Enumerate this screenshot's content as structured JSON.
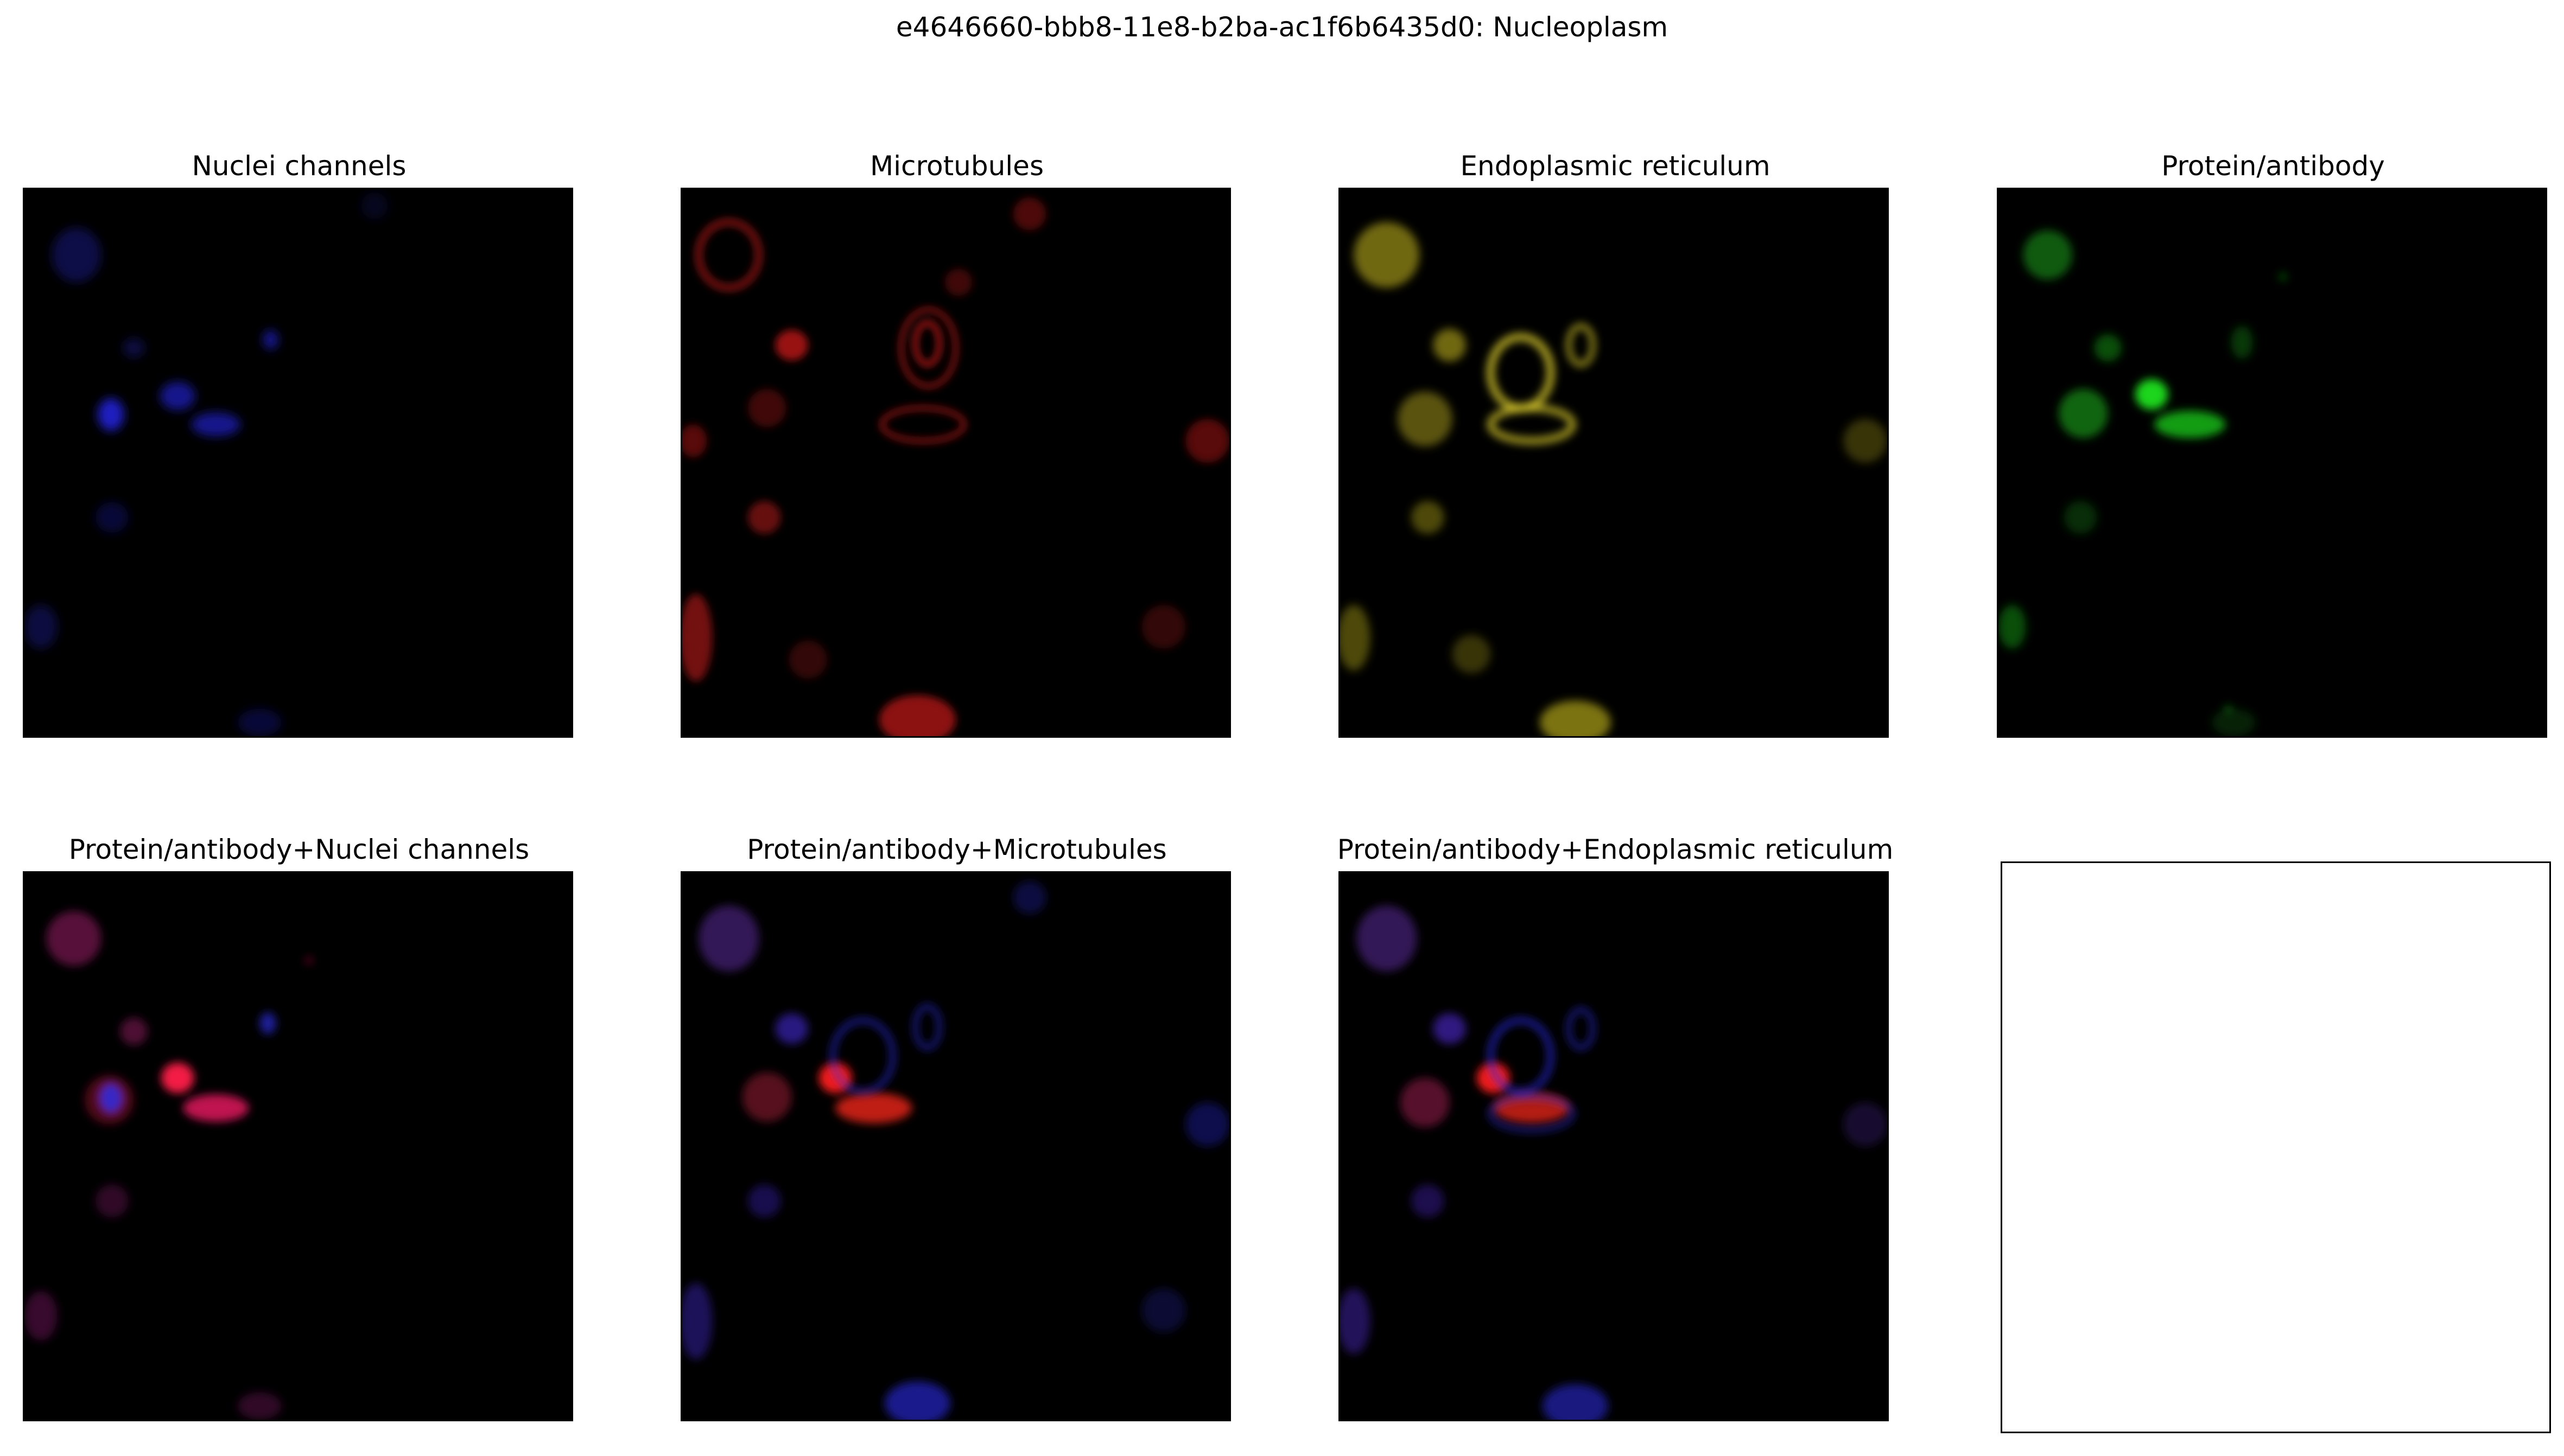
{
  "figure": {
    "title": "e4646660-bbb8-11e8-b2ba-ac1f6b6435d0: Nucleoplasm"
  },
  "panels": [
    {
      "title": "Nuclei channels",
      "channel_colors": [
        "#2a2aff"
      ]
    },
    {
      "title": "Microtubules",
      "channel_colors": [
        "#ff2020"
      ]
    },
    {
      "title": "Endoplasmic reticulum",
      "channel_colors": [
        "#e0d020"
      ]
    },
    {
      "title": "Protein/antibody",
      "channel_colors": [
        "#20e020"
      ]
    },
    {
      "title": "Protein/antibody+Nuclei channels",
      "channel_colors": [
        "#ff1a4a",
        "#3030ff"
      ]
    },
    {
      "title": "Protein/antibody+Microtubules",
      "channel_colors": [
        "#ff1a1a",
        "#3030ff"
      ]
    },
    {
      "title": "Protein/antibody+Endoplasmic reticulum",
      "channel_colors": [
        "#ff1a1a",
        "#3030ff"
      ]
    }
  ],
  "empty_panel": {
    "title": ""
  }
}
